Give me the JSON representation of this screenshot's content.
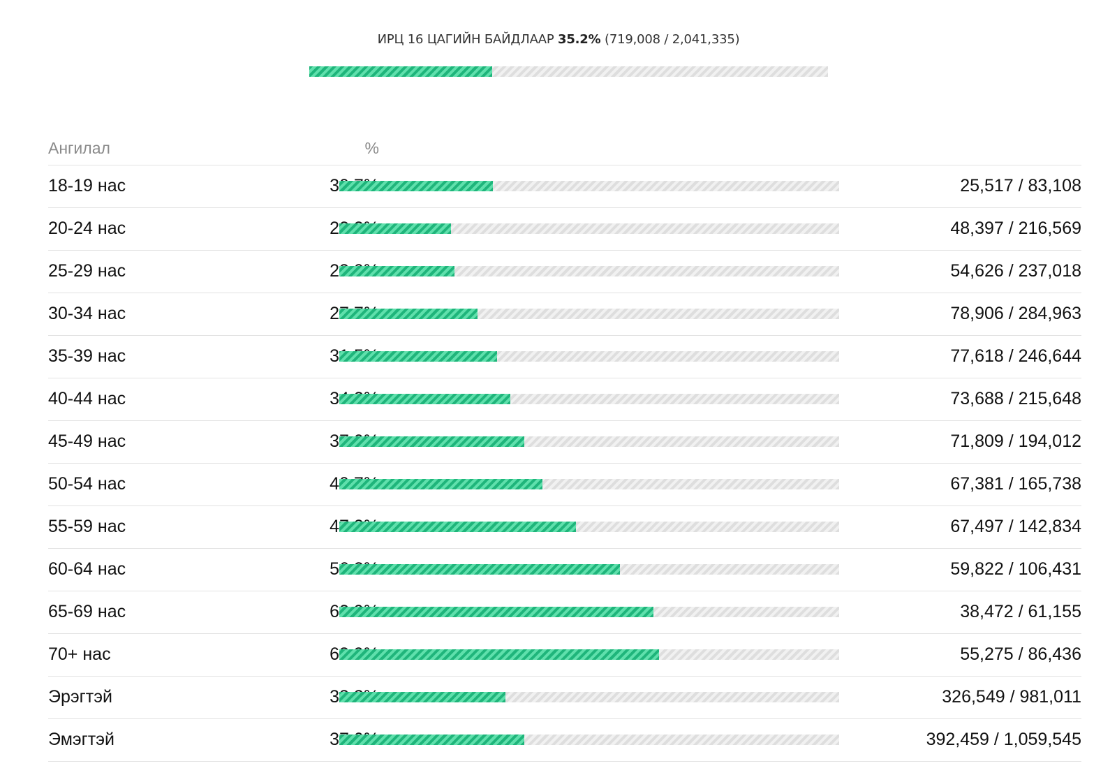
{
  "summary": {
    "label": "ИРЦ 16 ЦАГИЙН БАЙДЛААР",
    "percent": "35.2%",
    "counts": "(719,008 / 2,041,335)",
    "fraction": 0.352
  },
  "table": {
    "header_category": "Ангилал",
    "header_percent": "%",
    "rows": [
      {
        "category": "18-19 нас",
        "percent": "30.7%",
        "fraction": 0.307,
        "counts": "25,517 / 83,108"
      },
      {
        "category": "20-24 нас",
        "percent": "22.3%",
        "fraction": 0.223,
        "counts": "48,397 / 216,569"
      },
      {
        "category": "25-29 нас",
        "percent": "23.0%",
        "fraction": 0.23,
        "counts": "54,626 / 237,018"
      },
      {
        "category": "30-34 нас",
        "percent": "27.7%",
        "fraction": 0.277,
        "counts": "78,906 / 284,963"
      },
      {
        "category": "35-39 нас",
        "percent": "31.5%",
        "fraction": 0.315,
        "counts": "77,618 / 246,644"
      },
      {
        "category": "40-44 нас",
        "percent": "34.2%",
        "fraction": 0.342,
        "counts": "73,688 / 215,648"
      },
      {
        "category": "45-49 нас",
        "percent": "37.0%",
        "fraction": 0.37,
        "counts": "71,809 / 194,012"
      },
      {
        "category": "50-54 нас",
        "percent": "40.7%",
        "fraction": 0.407,
        "counts": "67,381 / 165,738"
      },
      {
        "category": "55-59 нас",
        "percent": "47.3%",
        "fraction": 0.473,
        "counts": "67,497 / 142,834"
      },
      {
        "category": "60-64 нас",
        "percent": "56.2%",
        "fraction": 0.562,
        "counts": "59,822 / 106,431"
      },
      {
        "category": "65-69 нас",
        "percent": "62.9%",
        "fraction": 0.629,
        "counts": "38,472 / 61,155"
      },
      {
        "category": "70+ нас",
        "percent": "63.9%",
        "fraction": 0.639,
        "counts": "55,275 / 86,436"
      },
      {
        "category": "Эрэгтэй",
        "percent": "33.3%",
        "fraction": 0.333,
        "counts": "326,549 / 981,011"
      },
      {
        "category": "Эмэгтэй",
        "percent": "37.0%",
        "fraction": 0.37,
        "counts": "392,459 / 1,059,545"
      }
    ]
  },
  "colors": {
    "fill_dark": "#1fb57b",
    "fill_light": "#5fe0ac",
    "track_dark": "#dedede",
    "track_light": "#f1f1f1"
  }
}
